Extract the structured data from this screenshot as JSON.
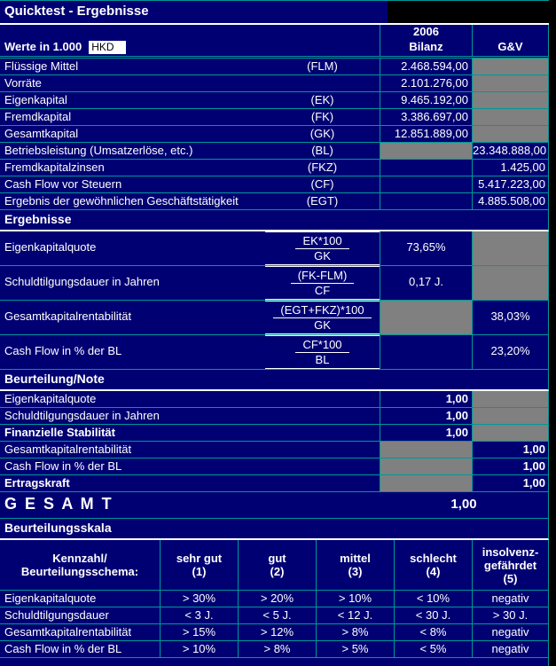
{
  "colors": {
    "background": "#000072",
    "gridline": "#009898",
    "blocked_cell": "#808080",
    "section_underline": "#ffffff",
    "outside": "#000000",
    "input_bg": "#ffffff"
  },
  "title": "Quicktest - Ergebnisse",
  "header": {
    "year": "2006",
    "werte_label": "Werte in 1.000",
    "currency": "HKD",
    "col_bilanz": "Bilanz",
    "col_guv": "G&V"
  },
  "rows": [
    {
      "label": "Flüssige Mittel",
      "code": "(FLM)",
      "bilanz": "2.468.594,00",
      "guv": ""
    },
    {
      "label": "Vorräte",
      "code": "",
      "bilanz": "2.101.276,00",
      "guv": ""
    },
    {
      "label": "Eigenkapital",
      "code": "(EK)",
      "bilanz": "9.465.192,00",
      "guv": ""
    },
    {
      "label": "Fremdkapital",
      "code": "(FK)",
      "bilanz": "3.386.697,00",
      "guv": ""
    },
    {
      "label": "Gesamtkapital",
      "code": "(GK)",
      "bilanz": "12.851.889,00",
      "guv": ""
    },
    {
      "label": "Betriebsleistung (Umsatzerlöse, etc.)",
      "code": "(BL)",
      "bilanz": "",
      "guv": "23.348.888,00"
    },
    {
      "label": "Fremdkapitalzinsen",
      "code": "(FKZ)",
      "bilanz": "",
      "guv": "1.425,00"
    },
    {
      "label": "Cash Flow vor Steuern",
      "code": "(CF)",
      "bilanz": "",
      "guv": "5.417.223,00"
    },
    {
      "label": "Ergebnis der gewöhnlichen Geschäftstätigkeit",
      "code": "(EGT)",
      "bilanz": "",
      "guv": "4.885.508,00"
    }
  ],
  "sections": {
    "ergebnisse": "Ergebnisse",
    "beurteilung": "Beurteilung/Note",
    "skala": "Beurteilungsskala"
  },
  "results": [
    {
      "label": "Eigenkapitalquote",
      "num": "EK*100",
      "den": "GK",
      "bilanz": "73,65%",
      "guv": ""
    },
    {
      "label": "Schuldtilgungsdauer in Jahren",
      "num": "(FK-FLM)",
      "den": "CF",
      "bilanz": "0,17 J.",
      "guv": ""
    },
    {
      "label": "Gesamtkapitalrentabilität",
      "num": "(EGT+FKZ)*100",
      "den": "GK",
      "bilanz": "",
      "guv": "38,03%"
    },
    {
      "label": "Cash Flow in % der BL",
      "num": "CF*100",
      "den": "BL",
      "bilanz": "",
      "guv": "23,20%"
    }
  ],
  "notes": [
    {
      "label": "Eigenkapitalquote",
      "bilanz": "1,00",
      "guv": ""
    },
    {
      "label": "Schuldtilgungsdauer in Jahren",
      "bilanz": "1,00",
      "guv": ""
    },
    {
      "label": "Finanzielle Stabilität",
      "bilanz": "1,00",
      "guv": ""
    },
    {
      "label": "Gesamtkapitalrentabilität",
      "bilanz": "",
      "guv": "1,00"
    },
    {
      "label": "Cash Flow in % der BL",
      "bilanz": "",
      "guv": "1,00"
    },
    {
      "label": "Ertragskraft",
      "bilanz": "",
      "guv": "1,00"
    }
  ],
  "gesamt": {
    "label": "G E S A M T",
    "value": "1,00"
  },
  "scale": {
    "header": {
      "col0_line1": "Kennzahl/",
      "col0_line2": "Beurteilungsschema:",
      "cols": [
        {
          "line1": "sehr gut",
          "line2": "(1)"
        },
        {
          "line1": "gut",
          "line2": "(2)"
        },
        {
          "line1": "mittel",
          "line2": "(3)"
        },
        {
          "line1": "schlecht",
          "line2": "(4)"
        },
        {
          "line1": "insolvenz-",
          "line2": "gefährdet",
          "line3": "(5)"
        }
      ]
    },
    "rows": [
      {
        "label": "Eigenkapitalquote",
        "values": [
          "> 30%",
          "> 20%",
          "> 10%",
          "< 10%",
          "negativ"
        ]
      },
      {
        "label": "Schuldtilgungsdauer",
        "values": [
          "< 3 J.",
          "< 5 J.",
          "< 12 J.",
          "< 30 J.",
          "> 30 J."
        ]
      },
      {
        "label": "Gesamtkapitalrentabilität",
        "values": [
          "> 15%",
          "> 12%",
          "> 8%",
          "< 8%",
          "negativ"
        ]
      },
      {
        "label": "Cash Flow in % der BL",
        "values": [
          "> 10%",
          "> 8%",
          "> 5%",
          "< 5%",
          "negativ"
        ]
      }
    ]
  }
}
